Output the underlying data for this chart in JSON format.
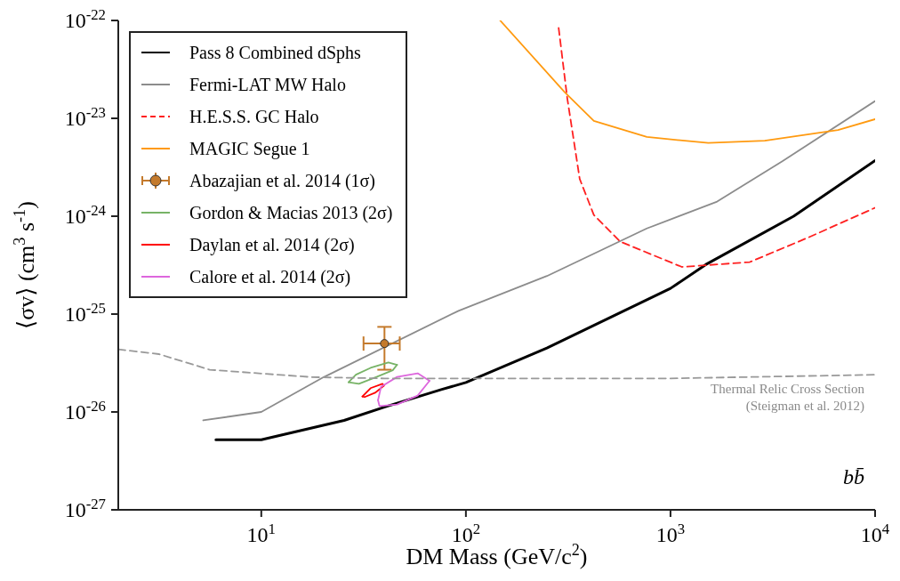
{
  "chart_data": {
    "type": "line",
    "xlabel": "DM Mass (GeV/c$^{2}$)",
    "ylabel": "⟨σv⟩ (cm$^{3}$ s$^{-1}$)",
    "log": "xy",
    "grid": false,
    "legend": "top left",
    "marker": "none",
    "xlim": [
      2,
      10000
    ],
    "xticks": [
      {
        "value": 10,
        "label": "10$^{1}$"
      },
      {
        "value": 100,
        "label": "10$^{2}$"
      },
      {
        "value": 1000,
        "label": "10$^{3}$"
      },
      {
        "value": 10000,
        "label": "10$^{4}$"
      }
    ],
    "ylim": [
      1e-27,
      1e-22
    ],
    "yticks": [
      {
        "value": 1e-27,
        "label": "10$^{-27}$"
      },
      {
        "value": 1e-26,
        "label": "10$^{-26}$"
      },
      {
        "value": 1e-25,
        "label": "10$^{-25}$"
      },
      {
        "value": 1e-24,
        "label": "10$^{-24}$"
      },
      {
        "value": 1e-23,
        "label": "10$^{-23}$"
      },
      {
        "value": 1e-22,
        "label": "10$^{-22}$"
      }
    ],
    "annotations": [
      "Thermal Relic Cross Section\n(Steigman et al. 2012)",
      "bb̄"
    ],
    "series": [
      {
        "name": "Pass 8 Combined dSphs",
        "color": "#000000",
        "line_style": "solid",
        "x": [
          6,
          10,
          25.4,
          40.5,
          75.7,
          100,
          249,
          1000,
          1486,
          4000,
          10000
        ],
        "values": [
          5.2e-27,
          5.2e-27,
          8.2e-27,
          1.13e-26,
          1.69e-26,
          2e-26,
          4.5e-26,
          1.83e-25,
          3.2e-25,
          1e-24,
          3.7e-24
        ]
      },
      {
        "name": "Fermi-LAT MW Halo",
        "color": "#8c8c8c",
        "line_style": "solid",
        "x": [
          5.2,
          10,
          20.2,
          92,
          249,
          766,
          1690,
          3520,
          10000
        ],
        "values": [
          8.2e-27,
          1e-26,
          2.27e-26,
          1.08e-25,
          2.45e-25,
          7.5e-25,
          1.41e-24,
          3.65e-24,
          1.5e-23
        ]
      },
      {
        "name": "H.E.S.S. GC Halo",
        "color": "#ff2020",
        "line_style": "dashed",
        "x": [
          284,
          313,
          360,
          422,
          568,
          1137,
          2440,
          4750,
          10000
        ],
        "values": [
          8.4e-23,
          1.6e-23,
          2.4e-24,
          1.03e-24,
          5.5e-25,
          3.03e-25,
          3.4e-25,
          6.1e-25,
          1.22e-24
        ]
      },
      {
        "name": "MAGIC Segue 1",
        "color": "#ff9a10",
        "line_style": "solid",
        "x": [
          147,
          304,
          422,
          766,
          1530,
          2890,
          6590,
          10000
        ],
        "values": [
          1e-22,
          1.85e-23,
          9.4e-24,
          6.45e-24,
          5.6e-24,
          5.9e-24,
          7.6e-24,
          9.8e-24
        ]
      },
      {
        "name": "Abazajian et al. 2014 (1σ)",
        "type": "scatter",
        "marker": "circle",
        "color": "#c47a2c",
        "x": [
          40
        ],
        "values": [
          5e-26
        ],
        "errors": [
          [
            2.7e-26,
            7.4e-26
          ]
        ],
        "xerrors": [
          [
            31.6,
            47.5
          ]
        ]
      },
      {
        "name": "Gordon & Macias 2013 (2σ)",
        "color": "#77b366",
        "line_style": "solid",
        "x": [
          26.7,
          29.0,
          34.2,
          41.8,
          46.1
        ],
        "values": [
          2.01e-26,
          2.4e-26,
          2.82e-26,
          3.2e-26,
          3.03e-26
        ]
      },
      {
        "color": "#77b366",
        "line_style": "solid",
        "x": [
          26.7,
          30.0,
          36.6,
          43.9,
          46.1
        ],
        "values": [
          2.01e-26,
          1.94e-26,
          2.28e-26,
          2.67e-26,
          3.03e-26
        ]
      },
      {
        "name": "Daylan et al. 2014 (2σ)",
        "color": "#ff0000",
        "line_style": "solid",
        "x": [
          31.2,
          34.2,
          39.1,
          39.7
        ],
        "values": [
          1.44e-26,
          1.75e-26,
          1.94e-26,
          1.85e-26
        ]
      },
      {
        "color": "#ff0000",
        "line_style": "solid",
        "x": [
          31.2,
          32.0,
          36.0,
          39.7
        ],
        "values": [
          1.44e-26,
          1.42e-26,
          1.57e-26,
          1.85e-26
        ]
      },
      {
        "name": "Calore et al. 2014 (2σ)",
        "color": "#dd66dd",
        "line_style": "solid",
        "x": [
          37.2,
          38.5,
          46.1,
          58.1,
          66.4
        ],
        "values": [
          1.32e-26,
          1.81e-26,
          2.28e-26,
          2.48e-26,
          2.08e-26
        ]
      },
      {
        "color": "#dd66dd",
        "line_style": "solid",
        "x": [
          37.2,
          37.8,
          46.1,
          58.1,
          66.4
        ],
        "values": [
          1.32e-26,
          1.15e-26,
          1.19e-26,
          1.47e-26,
          2.08e-26
        ]
      },
      {
        "color": "#999999",
        "line_style": "dashed",
        "x": [
          2,
          3.16,
          5.6,
          10,
          17.6,
          40,
          100,
          1000,
          10000
        ],
        "values": [
          4.36e-26,
          3.9e-26,
          2.7e-26,
          2.47e-26,
          2.27e-26,
          2.2e-26,
          2.2e-26,
          2.2e-26,
          2.4e-26
        ]
      }
    ]
  }
}
